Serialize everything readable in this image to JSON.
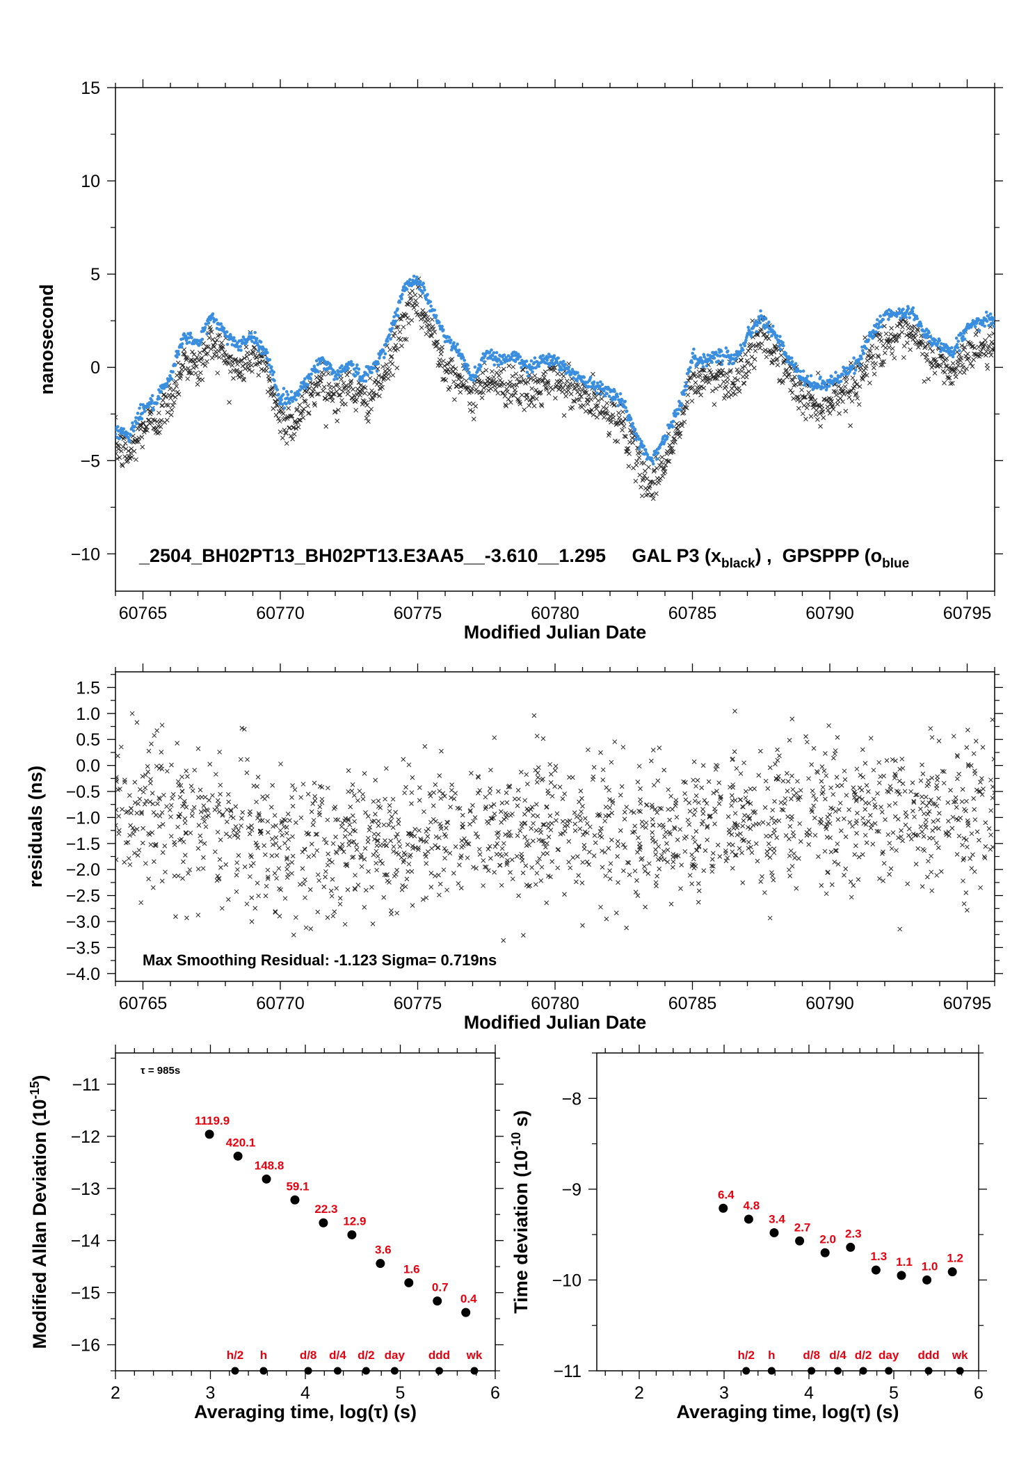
{
  "chart_data": [
    {
      "id": "time-series",
      "type": "scatter",
      "xlabel": "Modified Julian Date",
      "ylabel": "nanosecond",
      "xlim": [
        60764.0,
        60796.0
      ],
      "ylim": [
        -12.0,
        15.0
      ],
      "xticks": [
        60765,
        60770,
        60775,
        60780,
        60785,
        60790,
        60795
      ],
      "yticks": [
        -10,
        -5,
        0,
        5,
        10,
        15
      ],
      "yticklabels": [
        "−10",
        "−5",
        "0",
        "5",
        "10",
        "15"
      ],
      "annotation": {
        "prefix": "_2504_BH02PT13_BH02PT13.E3AA5__-3.610__1.295     GAL P3 (x",
        "sub1": "black",
        "middle": ") ,  GPSPPP (o",
        "sub2": "blue"
      },
      "series": [
        {
          "marker": "x",
          "color": "#222222",
          "points": [
            [
              60764.0,
              -4.2
            ],
            [
              60764.5,
              -4.8
            ],
            [
              60765.0,
              -3.2
            ],
            [
              60765.5,
              -2.8
            ],
            [
              60766.0,
              -1.8
            ],
            [
              60766.5,
              0.5
            ],
            [
              60767.0,
              -0.2
            ],
            [
              60767.5,
              1.5
            ],
            [
              60768.0,
              0.6
            ],
            [
              60768.5,
              -0.3
            ],
            [
              60769.0,
              0.8
            ],
            [
              60769.5,
              -0.2
            ],
            [
              60770.0,
              -2.8
            ],
            [
              60770.5,
              -3.0
            ],
            [
              60771.0,
              -1.8
            ],
            [
              60771.5,
              -0.5
            ],
            [
              60772.0,
              -1.6
            ],
            [
              60772.5,
              -1.0
            ],
            [
              60773.0,
              -1.9
            ],
            [
              60773.5,
              -1.2
            ],
            [
              60774.0,
              0.2
            ],
            [
              60774.5,
              2.5
            ],
            [
              60775.0,
              3.6
            ],
            [
              60775.5,
              1.8
            ],
            [
              60776.0,
              0.2
            ],
            [
              60776.5,
              -0.6
            ],
            [
              60777.0,
              -1.6
            ],
            [
              60777.5,
              -0.4
            ],
            [
              60778.0,
              -1.0
            ],
            [
              60778.5,
              -0.8
            ],
            [
              60779.0,
              -1.4
            ],
            [
              60779.5,
              -1.1
            ],
            [
              60780.0,
              -0.6
            ],
            [
              60780.5,
              -1.2
            ],
            [
              60781.0,
              -1.6
            ],
            [
              60781.5,
              -2.0
            ],
            [
              60782.0,
              -2.4
            ],
            [
              60782.5,
              -3.2
            ],
            [
              60783.0,
              -5.2
            ],
            [
              60783.5,
              -6.4
            ],
            [
              60784.0,
              -5.0
            ],
            [
              60784.5,
              -3.4
            ],
            [
              60785.0,
              -0.8
            ],
            [
              60785.5,
              -0.6
            ],
            [
              60786.0,
              -0.4
            ],
            [
              60786.5,
              -0.8
            ],
            [
              60787.0,
              0.4
            ],
            [
              60787.5,
              1.6
            ],
            [
              60788.0,
              0.8
            ],
            [
              60788.5,
              -0.4
            ],
            [
              60789.0,
              -1.6
            ],
            [
              60789.5,
              -2.0
            ],
            [
              60790.0,
              -1.7
            ],
            [
              60790.5,
              -1.2
            ],
            [
              60791.0,
              -0.8
            ],
            [
              60791.5,
              0.6
            ],
            [
              60792.0,
              1.4
            ],
            [
              60792.5,
              1.6
            ],
            [
              60793.0,
              1.6
            ],
            [
              60793.5,
              0.8
            ],
            [
              60794.0,
              0.2
            ],
            [
              60794.5,
              -0.4
            ],
            [
              60795.0,
              0.9
            ],
            [
              60795.5,
              1.0
            ],
            [
              60796.0,
              1.2
            ]
          ]
        },
        {
          "marker": "o",
          "color": "#3a8ee0",
          "points": [
            [
              60764.0,
              -3.4
            ],
            [
              60764.5,
              -3.6
            ],
            [
              60765.0,
              -2.2
            ],
            [
              60765.5,
              -1.8
            ],
            [
              60766.0,
              -0.6
            ],
            [
              60766.5,
              1.8
            ],
            [
              60767.0,
              1.2
            ],
            [
              60767.5,
              2.8
            ],
            [
              60768.0,
              1.8
            ],
            [
              60768.5,
              1.2
            ],
            [
              60769.0,
              1.6
            ],
            [
              60769.5,
              0.8
            ],
            [
              60770.0,
              -1.8
            ],
            [
              60770.5,
              -1.6
            ],
            [
              60771.0,
              -0.6
            ],
            [
              60771.5,
              0.4
            ],
            [
              60772.0,
              -0.4
            ],
            [
              60772.5,
              0.2
            ],
            [
              60773.0,
              -0.6
            ],
            [
              60773.5,
              0.2
            ],
            [
              60774.0,
              1.8
            ],
            [
              60774.5,
              4.2
            ],
            [
              60775.0,
              4.8
            ],
            [
              60775.5,
              3.2
            ],
            [
              60776.0,
              1.6
            ],
            [
              60776.5,
              0.8
            ],
            [
              60777.0,
              -0.6
            ],
            [
              60777.5,
              0.8
            ],
            [
              60778.0,
              0.4
            ],
            [
              60778.5,
              0.6
            ],
            [
              60779.0,
              0.0
            ],
            [
              60779.5,
              0.4
            ],
            [
              60780.0,
              0.4
            ],
            [
              60780.5,
              -0.2
            ],
            [
              60781.0,
              -0.6
            ],
            [
              60781.5,
              -1.0
            ],
            [
              60782.0,
              -1.2
            ],
            [
              60782.5,
              -2.0
            ],
            [
              60783.0,
              -3.8
            ],
            [
              60783.5,
              -5.0
            ],
            [
              60784.0,
              -3.8
            ],
            [
              60784.5,
              -2.2
            ],
            [
              60785.0,
              0.4
            ],
            [
              60785.5,
              0.4
            ],
            [
              60786.0,
              0.8
            ],
            [
              60786.5,
              0.4
            ],
            [
              60787.0,
              1.6
            ],
            [
              60787.5,
              2.8
            ],
            [
              60788.0,
              1.8
            ],
            [
              60788.5,
              0.4
            ],
            [
              60789.0,
              -0.6
            ],
            [
              60789.5,
              -1.0
            ],
            [
              60790.0,
              -0.8
            ],
            [
              60790.5,
              -0.4
            ],
            [
              60791.0,
              0.2
            ],
            [
              60791.5,
              1.8
            ],
            [
              60792.0,
              2.8
            ],
            [
              60792.5,
              2.8
            ],
            [
              60793.0,
              3.0
            ],
            [
              60793.5,
              1.8
            ],
            [
              60794.0,
              1.2
            ],
            [
              60794.5,
              0.8
            ],
            [
              60795.0,
              2.2
            ],
            [
              60795.5,
              2.4
            ],
            [
              60796.0,
              2.6
            ]
          ]
        }
      ]
    },
    {
      "id": "residuals",
      "type": "scatter",
      "xlabel": "Modified Julian Date",
      "ylabel": "residuals (ns)",
      "xlim": [
        60764.0,
        60796.0
      ],
      "ylim": [
        -4.15,
        1.8
      ],
      "xticks": [
        60765,
        60770,
        60775,
        60780,
        60785,
        60790,
        60795
      ],
      "yticks": [
        -4.0,
        -3.5,
        -3.0,
        -2.5,
        -2.0,
        -1.5,
        -1.0,
        -0.5,
        0.0,
        0.5,
        1.0,
        1.5
      ],
      "yticklabels": [
        "−4.0",
        "−3.5",
        "−3.0",
        "−2.5",
        "−2.0",
        "−1.5",
        "−1.0",
        "−0.5",
        "0.0",
        "0.5",
        "1.0",
        "1.5"
      ],
      "annotation": "Max Smoothing Residual: -1.123  Sigma= 0.719ns",
      "series": [
        {
          "marker": "x",
          "color": "#222222",
          "mean": [
            [
              60764.0,
              -0.8
            ],
            [
              60768.0,
              -1.2
            ],
            [
              60772.0,
              -1.6
            ],
            [
              60776.0,
              -1.3
            ],
            [
              60780.0,
              -1.2
            ],
            [
              60784.0,
              -1.3
            ],
            [
              60788.0,
              -1.0
            ],
            [
              60792.0,
              -0.9
            ],
            [
              60796.0,
              -1.1
            ]
          ],
          "spread_sigma": 0.7
        }
      ]
    },
    {
      "id": "mdev",
      "type": "scatter",
      "xlabel": "Averaging time, log(τ) (s)",
      "ylabel": "Modified Allan Deviation (10",
      "ylabel_sup": "-15",
      "ylabel_end": ")",
      "xlim": [
        2.0,
        6.0
      ],
      "ylim": [
        -16.5,
        -10.4
      ],
      "xticks": [
        2,
        3,
        4,
        5,
        6
      ],
      "yticks": [
        -16,
        -15,
        -14,
        -13,
        -12,
        -11
      ],
      "yticklabels": [
        "−16",
        "−15",
        "−14",
        "−13",
        "−12",
        "−11"
      ],
      "annotation": "τ = 985s",
      "points": [
        {
          "x": 2.99,
          "y": -11.96,
          "label": "1119.9"
        },
        {
          "x": 3.29,
          "y": -12.38,
          "label": "420.1"
        },
        {
          "x": 3.59,
          "y": -12.82,
          "label": "148.8"
        },
        {
          "x": 3.89,
          "y": -13.22,
          "label": "59.1"
        },
        {
          "x": 4.19,
          "y": -13.66,
          "label": "22.3"
        },
        {
          "x": 4.49,
          "y": -13.89,
          "label": "12.9"
        },
        {
          "x": 4.79,
          "y": -14.44,
          "label": "3.6"
        },
        {
          "x": 5.09,
          "y": -14.81,
          "label": "1.6"
        },
        {
          "x": 5.39,
          "y": -15.16,
          "label": "0.7"
        },
        {
          "x": 5.69,
          "y": -15.38,
          "label": "0.4"
        }
      ],
      "time_markers": [
        {
          "x": 3.26,
          "label": "h/2"
        },
        {
          "x": 3.56,
          "label": "h"
        },
        {
          "x": 4.03,
          "label": "d/8"
        },
        {
          "x": 4.34,
          "label": "d/4"
        },
        {
          "x": 4.64,
          "label": "d/2"
        },
        {
          "x": 4.94,
          "label": "day"
        },
        {
          "x": 5.41,
          "label": "ddd"
        },
        {
          "x": 5.78,
          "label": "wk"
        }
      ]
    },
    {
      "id": "tdev",
      "type": "scatter",
      "xlabel": "Averaging time, log(τ) (s)",
      "ylabel": "Time deviation (10",
      "ylabel_sup": "-10",
      "ylabel_end": " s)",
      "xlim": [
        1.5,
        6.0
      ],
      "ylim": [
        -11.0,
        -7.5
      ],
      "xticks": [
        2,
        3,
        4,
        5,
        6
      ],
      "yticks": [
        -11,
        -10,
        -9,
        -8
      ],
      "yticklabels": [
        "−11",
        "−10",
        "−9",
        "−8"
      ],
      "points": [
        {
          "x": 2.99,
          "y": -9.21,
          "label": "6.4"
        },
        {
          "x": 3.29,
          "y": -9.33,
          "label": "4.8"
        },
        {
          "x": 3.59,
          "y": -9.48,
          "label": "3.4"
        },
        {
          "x": 3.89,
          "y": -9.57,
          "label": "2.7"
        },
        {
          "x": 4.19,
          "y": -9.7,
          "label": "2.0"
        },
        {
          "x": 4.49,
          "y": -9.64,
          "label": "2.3"
        },
        {
          "x": 4.79,
          "y": -9.89,
          "label": "1.3"
        },
        {
          "x": 5.09,
          "y": -9.95,
          "label": "1.1"
        },
        {
          "x": 5.39,
          "y": -10.0,
          "label": "1.0"
        },
        {
          "x": 5.69,
          "y": -9.91,
          "label": "1.2"
        }
      ],
      "time_markers": [
        {
          "x": 3.26,
          "label": "h/2"
        },
        {
          "x": 3.56,
          "label": "h"
        },
        {
          "x": 4.03,
          "label": "d/8"
        },
        {
          "x": 4.34,
          "label": "d/4"
        },
        {
          "x": 4.64,
          "label": "d/2"
        },
        {
          "x": 4.94,
          "label": "day"
        },
        {
          "x": 5.41,
          "label": "ddd"
        },
        {
          "x": 5.78,
          "label": "wk"
        }
      ]
    }
  ]
}
